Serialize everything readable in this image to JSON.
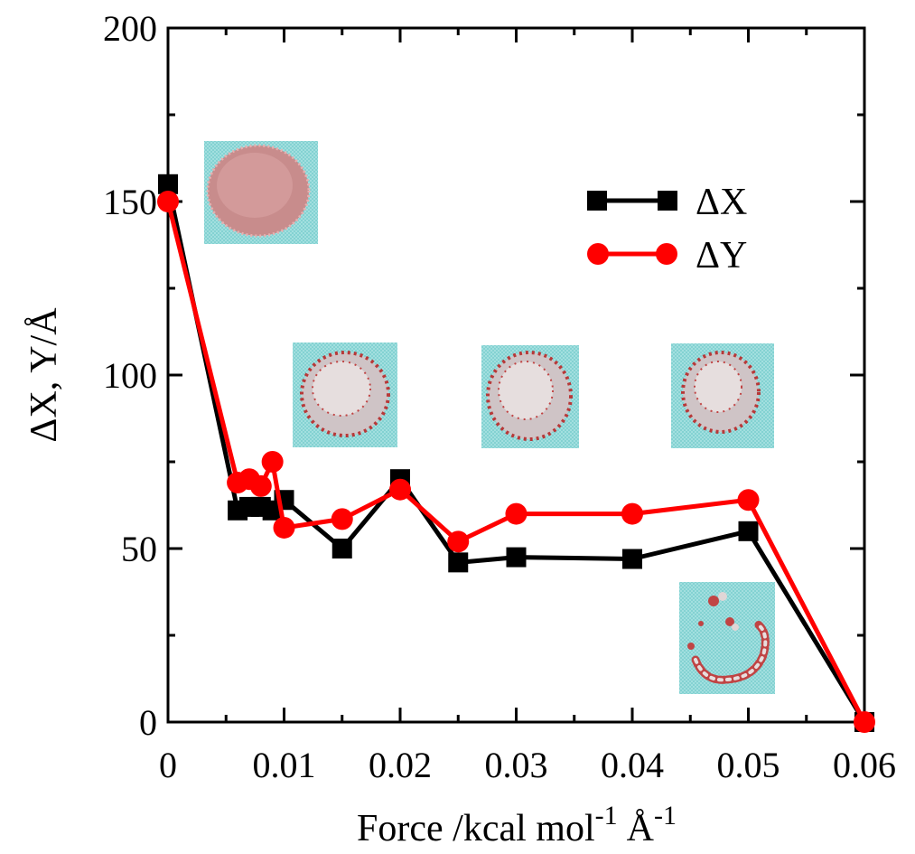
{
  "chart_data": {
    "type": "line",
    "xlabel": "Force /kcal mol",
    "xlabel_sup1": "-1",
    "xlabel_unit": "Å",
    "xlabel_sup2": "-1",
    "ylabel": "ΔX, Y/Å",
    "xlim": [
      0,
      0.06
    ],
    "ylim": [
      0,
      200
    ],
    "x_ticks": [
      0,
      0.01,
      0.02,
      0.03,
      0.04,
      0.05,
      0.06
    ],
    "x_tick_labels": [
      "0",
      "0.01",
      "0.02",
      "0.03",
      "0.04",
      "0.05",
      "0.06"
    ],
    "y_ticks": [
      0,
      50,
      100,
      150,
      200
    ],
    "y_tick_labels": [
      "0",
      "50",
      "100",
      "150",
      "200"
    ],
    "grid": false,
    "legend": "top-right",
    "series": [
      {
        "name": "ΔX",
        "marker": "square",
        "color": "#000000",
        "x": [
          0,
          0.006,
          0.007,
          0.008,
          0.009,
          0.01,
          0.015,
          0.02,
          0.025,
          0.03,
          0.04,
          0.05,
          0.06
        ],
        "y": [
          155,
          61,
          62,
          62,
          61,
          64,
          50,
          70,
          46,
          47.5,
          47,
          55,
          0
        ]
      },
      {
        "name": "ΔY",
        "marker": "circle",
        "color": "#ff0000",
        "x": [
          0,
          0.006,
          0.007,
          0.008,
          0.009,
          0.01,
          0.015,
          0.02,
          0.025,
          0.03,
          0.04,
          0.05,
          0.06
        ],
        "y": [
          150,
          69,
          70,
          68,
          75,
          56,
          58.5,
          67,
          52,
          60,
          60,
          64,
          0
        ]
      }
    ],
    "inset_images": [
      {
        "depicts": "molecular-cluster-snapshot",
        "state": "dense"
      },
      {
        "depicts": "molecular-cluster-snapshot",
        "state": "compact"
      },
      {
        "depicts": "molecular-cluster-snapshot",
        "state": "compact"
      },
      {
        "depicts": "molecular-cluster-snapshot",
        "state": "compact"
      },
      {
        "depicts": "molecular-cluster-snapshot",
        "state": "fragmented-ring"
      }
    ]
  }
}
